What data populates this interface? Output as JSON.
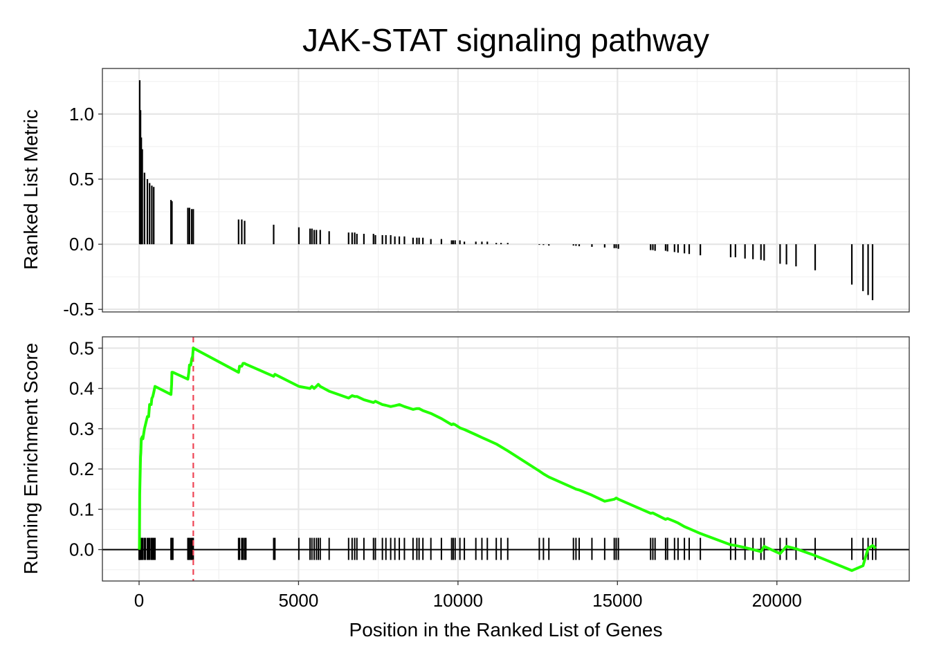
{
  "chart_data": {
    "type": "line",
    "title": "JAK-STAT signaling pathway",
    "xlabel": "Position in the Ranked List of Genes",
    "xlim": [
      -1150,
      24150
    ],
    "x_ticks": [
      0,
      5000,
      10000,
      15000,
      20000
    ],
    "x_tick_labels": [
      "0",
      "5000",
      "10000",
      "15000",
      "20000"
    ],
    "grid": true,
    "panels": [
      {
        "name": "ranked-list-metric",
        "type": "bar",
        "ylabel": "Ranked List Metric",
        "ylim": [
          -0.52,
          1.35
        ],
        "y_ticks": [
          -0.5,
          0.0,
          0.5,
          1.0
        ],
        "y_tick_labels": [
          "-0.5",
          "0.0",
          "0.5",
          "1.0"
        ],
        "bar_color": "#000000",
        "x": [
          20,
          45,
          70,
          100,
          170,
          260,
          330,
          400,
          460,
          1000,
          1030,
          1530,
          1580,
          1650,
          1700,
          3120,
          3220,
          3310,
          4220,
          5010,
          5360,
          5420,
          5490,
          5560,
          5680,
          5960,
          6570,
          6680,
          6760,
          6830,
          7050,
          7350,
          7410,
          7630,
          7740,
          7890,
          8020,
          8160,
          8320,
          8590,
          8710,
          8780,
          8900,
          9150,
          9480,
          9800,
          9850,
          9910,
          10060,
          10200,
          10560,
          10750,
          10920,
          11200,
          11350,
          11560,
          12550,
          12680,
          12850,
          13620,
          13700,
          13800,
          14200,
          14600,
          14900,
          14960,
          15030,
          16040,
          16110,
          16180,
          16510,
          16570,
          16790,
          16900,
          17100,
          17250,
          17600,
          18550,
          18700,
          19000,
          19250,
          19500,
          19600,
          20100,
          20300,
          20600,
          21200,
          22350,
          22700,
          22860,
          23000
        ],
        "values": [
          1.26,
          1.03,
          0.82,
          0.73,
          0.55,
          0.5,
          0.47,
          0.45,
          0.44,
          0.34,
          0.33,
          0.28,
          0.28,
          0.27,
          0.27,
          0.19,
          0.19,
          0.18,
          0.15,
          0.13,
          0.12,
          0.12,
          0.11,
          0.11,
          0.11,
          0.1,
          0.09,
          0.09,
          0.09,
          0.08,
          0.08,
          0.08,
          0.07,
          0.07,
          0.07,
          0.07,
          0.06,
          0.06,
          0.06,
          0.05,
          0.05,
          0.05,
          0.05,
          0.04,
          0.04,
          0.03,
          0.03,
          0.03,
          0.03,
          0.02,
          0.02,
          0.02,
          0.02,
          0.01,
          0.01,
          0.01,
          -0.005,
          -0.006,
          -0.01,
          -0.01,
          -0.012,
          -0.015,
          -0.02,
          -0.025,
          -0.03,
          -0.03,
          -0.035,
          -0.045,
          -0.045,
          -0.05,
          -0.05,
          -0.055,
          -0.06,
          -0.065,
          -0.07,
          -0.075,
          -0.085,
          -0.1,
          -0.1,
          -0.11,
          -0.115,
          -0.12,
          -0.125,
          -0.15,
          -0.155,
          -0.17,
          -0.2,
          -0.31,
          -0.36,
          -0.39,
          -0.43
        ]
      },
      {
        "name": "running-enrichment-score",
        "type": "line",
        "ylabel": "Running Enrichment Score",
        "ylim": [
          -0.078,
          0.528
        ],
        "y_ticks": [
          0.0,
          0.1,
          0.2,
          0.3,
          0.4,
          0.5
        ],
        "y_tick_labels": [
          "0.0",
          "0.1",
          "0.2",
          "0.3",
          "0.4",
          "0.5"
        ],
        "line_color": "#22ff00",
        "hit_marker_color": "#000000",
        "peak_line_color": "#ee4455",
        "peak_x": 1700,
        "baseline_y": 0.0,
        "x": [
          0,
          10,
          20,
          45,
          55,
          70,
          100,
          120,
          170,
          200,
          260,
          300,
          330,
          380,
          400,
          430,
          460,
          500,
          1000,
          1020,
          1030,
          1060,
          1530,
          1560,
          1580,
          1620,
          1650,
          1680,
          1700,
          3120,
          3150,
          3220,
          3260,
          3310,
          3350,
          4220,
          4260,
          5010,
          5360,
          5420,
          5490,
          5560,
          5620,
          5680,
          5960,
          6570,
          6680,
          6760,
          6830,
          7050,
          7350,
          7410,
          7630,
          7740,
          7890,
          8020,
          8160,
          8320,
          8590,
          8710,
          8780,
          8900,
          9150,
          9480,
          9800,
          9850,
          9910,
          10060,
          10200,
          10560,
          10750,
          10920,
          11200,
          11350,
          11560,
          12550,
          12680,
          12850,
          13620,
          13700,
          13800,
          14200,
          14600,
          14900,
          14960,
          15030,
          16040,
          16110,
          16180,
          16510,
          16570,
          16790,
          16900,
          17100,
          17250,
          17600,
          18550,
          18700,
          19000,
          19250,
          19500,
          19600,
          20100,
          20300,
          20600,
          21200,
          22350,
          22700,
          22860,
          23000,
          23100
        ],
        "values": [
          0.0,
          0.005,
          0.138,
          0.23,
          0.24,
          0.275,
          0.28,
          0.275,
          0.3,
          0.31,
          0.33,
          0.33,
          0.36,
          0.36,
          0.375,
          0.38,
          0.39,
          0.405,
          0.385,
          0.41,
          0.44,
          0.44,
          0.423,
          0.44,
          0.458,
          0.458,
          0.473,
          0.48,
          0.5,
          0.44,
          0.455,
          0.455,
          0.462,
          0.462,
          0.46,
          0.43,
          0.435,
          0.405,
          0.4,
          0.405,
          0.4,
          0.405,
          0.41,
          0.405,
          0.393,
          0.376,
          0.382,
          0.38,
          0.38,
          0.372,
          0.365,
          0.368,
          0.36,
          0.358,
          0.355,
          0.357,
          0.36,
          0.355,
          0.348,
          0.35,
          0.35,
          0.345,
          0.338,
          0.325,
          0.31,
          0.312,
          0.31,
          0.302,
          0.298,
          0.285,
          0.278,
          0.272,
          0.262,
          0.255,
          0.245,
          0.195,
          0.188,
          0.18,
          0.153,
          0.15,
          0.148,
          0.135,
          0.12,
          0.125,
          0.128,
          0.125,
          0.09,
          0.091,
          0.088,
          0.075,
          0.077,
          0.07,
          0.066,
          0.057,
          0.052,
          0.04,
          0.012,
          0.01,
          0.005,
          0.0,
          -0.005,
          0.008,
          -0.01,
          0.008,
          0.002,
          -0.015,
          -0.052,
          -0.04,
          0.003,
          0.01,
          0.003
        ]
      }
    ]
  },
  "colors": {
    "background": "#ffffff",
    "panel_border": "#333333",
    "grid_major": "#e6e6e6",
    "grid_minor": "#f0f0f0"
  }
}
